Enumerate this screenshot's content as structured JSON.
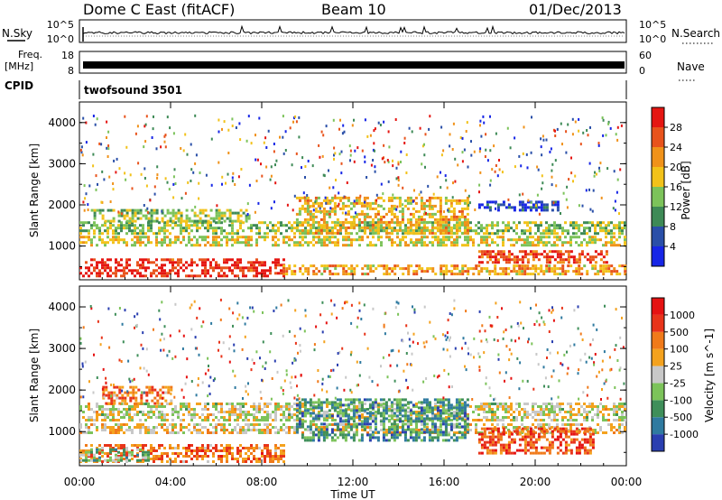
{
  "header": {
    "station": "Dome C East (fitACF)",
    "beam": "Beam 10",
    "date": "01/Dec/2013"
  },
  "side_labels": {
    "nsky": "N.Sky",
    "freq": "Freq.",
    "freq_unit": "[MHz]",
    "cpid": "CPID",
    "nsearch": "N.Search",
    "nave": "Nave"
  },
  "cpid_text": "twofsound 3501",
  "chart_data": [
    {
      "type": "line",
      "name": "noise-panel",
      "left_axis": {
        "label": "N.Sky",
        "ticks": [
          "10^5",
          "10^0"
        ]
      },
      "right_axis": {
        "label": "N.Search",
        "ticks": [
          "10^5",
          "10^0"
        ]
      },
      "description_values": {
        "level": 0.6
      }
    },
    {
      "type": "line",
      "name": "frequency-panel",
      "left_axis": {
        "label": "Freq. [MHz]",
        "ticks": [
          "18",
          "8"
        ]
      },
      "right_axis": {
        "label": "Nave",
        "ticks": [
          "60",
          "0"
        ]
      },
      "description_values": {
        "level": 0.4
      }
    },
    {
      "type": "heatmap",
      "name": "power",
      "ylabel": "Slant Range [km]",
      "yticks": [
        "1000",
        "2000",
        "3000",
        "4000"
      ],
      "ylim": [
        180,
        4500
      ],
      "colorbar": {
        "label": "Power [dB]",
        "ticks": [
          "4",
          "8",
          "12",
          "16",
          "20",
          "24",
          "28"
        ],
        "colors": [
          "#1726e6",
          "#2a4fa8",
          "#3e8a56",
          "#7cc35a",
          "#f2c21a",
          "#f0921a",
          "#e8531c",
          "#e51612"
        ]
      },
      "bands": [
        {
          "t0": 0.0,
          "t1": 9.0,
          "r0": 300,
          "r1": 700,
          "level": 0.92
        },
        {
          "t0": 8.8,
          "t1": 24.0,
          "r0": 300,
          "r1": 550,
          "level": 0.65
        },
        {
          "t0": 0.0,
          "t1": 24.0,
          "r0": 1000,
          "r1": 1250,
          "level": 0.55
        },
        {
          "t0": 0.0,
          "t1": 24.0,
          "r0": 1300,
          "r1": 1600,
          "level": 0.45
        },
        {
          "t0": 9.5,
          "t1": 17.0,
          "r0": 1300,
          "r1": 2200,
          "level": 0.6
        },
        {
          "t0": 17.5,
          "t1": 23.2,
          "r0": 600,
          "r1": 900,
          "level": 0.85
        },
        {
          "t0": 17.5,
          "t1": 21.0,
          "r0": 1900,
          "r1": 2100,
          "level": 0.12
        },
        {
          "t0": 0.5,
          "t1": 7.5,
          "r0": 1600,
          "r1": 1900,
          "level": 0.45
        }
      ]
    },
    {
      "type": "heatmap",
      "name": "velocity",
      "ylabel": "Slant Range [km]",
      "yticks": [
        "1000",
        "2000",
        "3000",
        "4000"
      ],
      "ylim": [
        180,
        4500
      ],
      "colorbar": {
        "label": "Velocity [m s^-1]",
        "ticks": [
          "1000",
          "500",
          "100",
          "25",
          "-25",
          "-100",
          "-500",
          "-1000"
        ],
        "colors": [
          "#2a3fb0",
          "#2f7aa0",
          "#3f8f5a",
          "#7cc35a",
          "#c8c8c8",
          "#f4a21e",
          "#f07a1a",
          "#e8341a",
          "#e51212"
        ]
      },
      "bands": [
        {
          "t0": 0.0,
          "t1": 9.0,
          "r0": 300,
          "r1": 700,
          "level": 0.72
        },
        {
          "t0": 0.0,
          "t1": 3.0,
          "r0": 300,
          "r1": 600,
          "level": 0.35
        },
        {
          "t0": 0.0,
          "t1": 24.0,
          "r0": 1300,
          "r1": 1700,
          "level": 0.5
        },
        {
          "t0": 0.0,
          "t1": 24.0,
          "r0": 1000,
          "r1": 1200,
          "level": 0.55
        },
        {
          "t0": 17.5,
          "t1": 22.5,
          "r0": 500,
          "r1": 1100,
          "level": 0.82
        },
        {
          "t0": 9.5,
          "t1": 17.0,
          "r0": 800,
          "r1": 1800,
          "level": 0.25
        },
        {
          "t0": 1.0,
          "t1": 4.0,
          "r0": 1700,
          "r1": 2100,
          "level": 0.72
        }
      ]
    }
  ],
  "x_axis": {
    "label": "Time UT",
    "ticks": [
      "00:00",
      "04:00",
      "08:00",
      "12:00",
      "16:00",
      "20:00",
      "00:00"
    ],
    "range": [
      0,
      24
    ]
  }
}
